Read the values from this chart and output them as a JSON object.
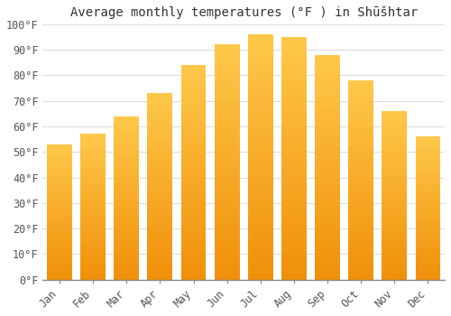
{
  "title": "Average monthly temperatures (°F ) in Shūšhtar",
  "months": [
    "Jan",
    "Feb",
    "Mar",
    "Apr",
    "May",
    "Jun",
    "Jul",
    "Aug",
    "Sep",
    "Oct",
    "Nov",
    "Dec"
  ],
  "values": [
    53,
    57,
    64,
    73,
    84,
    92,
    96,
    95,
    88,
    78,
    66,
    56
  ],
  "bar_color_top": "#FFC84A",
  "bar_color_bottom": "#F0900A",
  "background_color": "#FFFFFF",
  "grid_color": "#DDDDDD",
  "ylim": [
    0,
    100
  ],
  "ytick_step": 10,
  "title_fontsize": 10,
  "tick_fontsize": 8.5
}
